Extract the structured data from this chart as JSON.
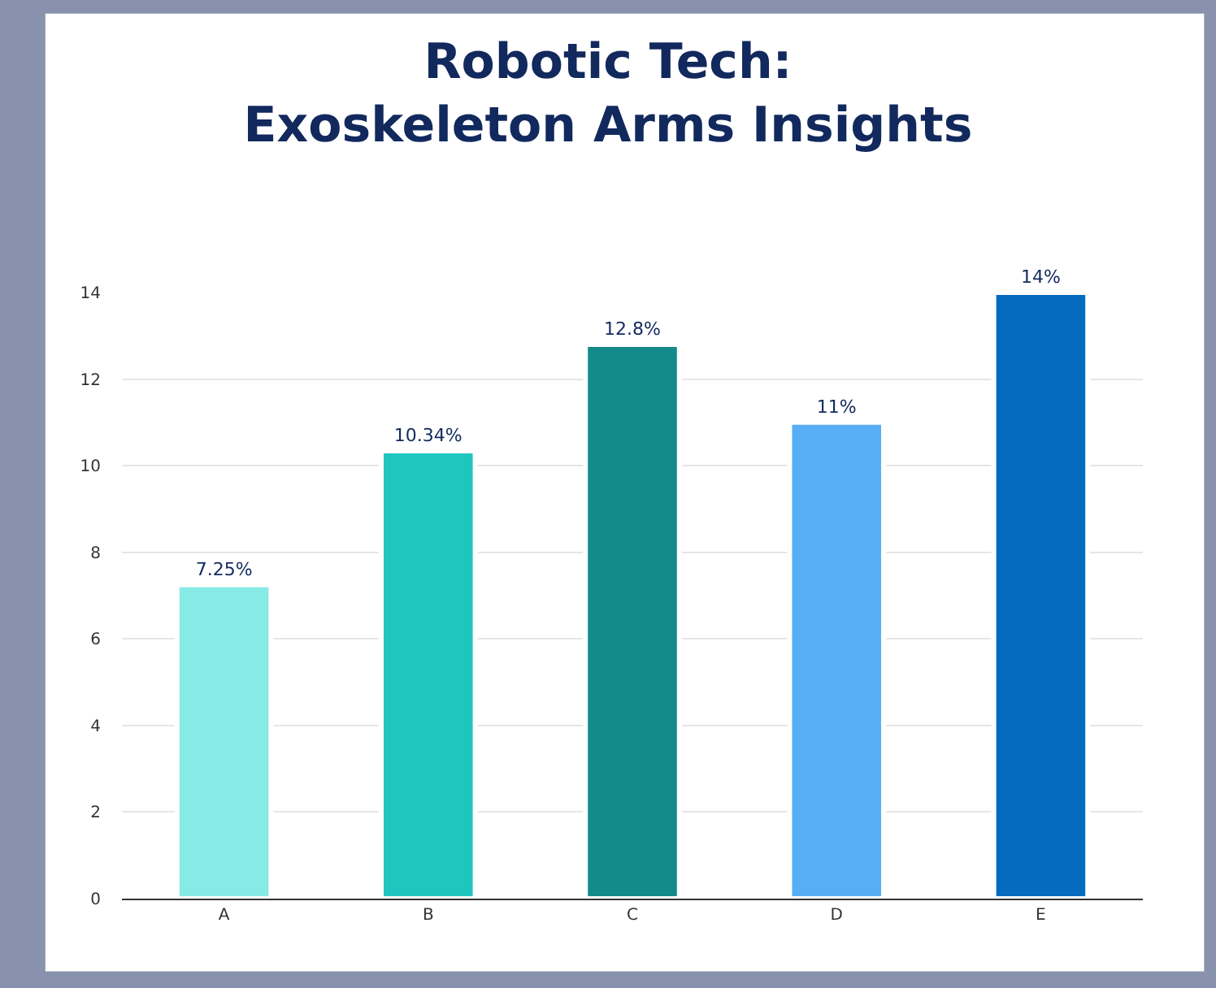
{
  "chart_data": {
    "type": "bar",
    "title": "Robotic Tech:\nExoskeleton Arms Insights",
    "categories": [
      "A",
      "B",
      "C",
      "D",
      "E"
    ],
    "values": [
      7.25,
      10.34,
      12.8,
      11,
      14
    ],
    "value_labels": [
      "7.25%",
      "10.34%",
      "12.8%",
      "11%",
      "14%"
    ],
    "colors": [
      "#87eae6",
      "#1fc6c0",
      "#138b8b",
      "#58aef4",
      "#046bbf"
    ],
    "ylim": [
      0,
      14
    ],
    "yticks": [
      0,
      2,
      4,
      6,
      8,
      10,
      12,
      14
    ],
    "grid": "y",
    "legend": false
  }
}
